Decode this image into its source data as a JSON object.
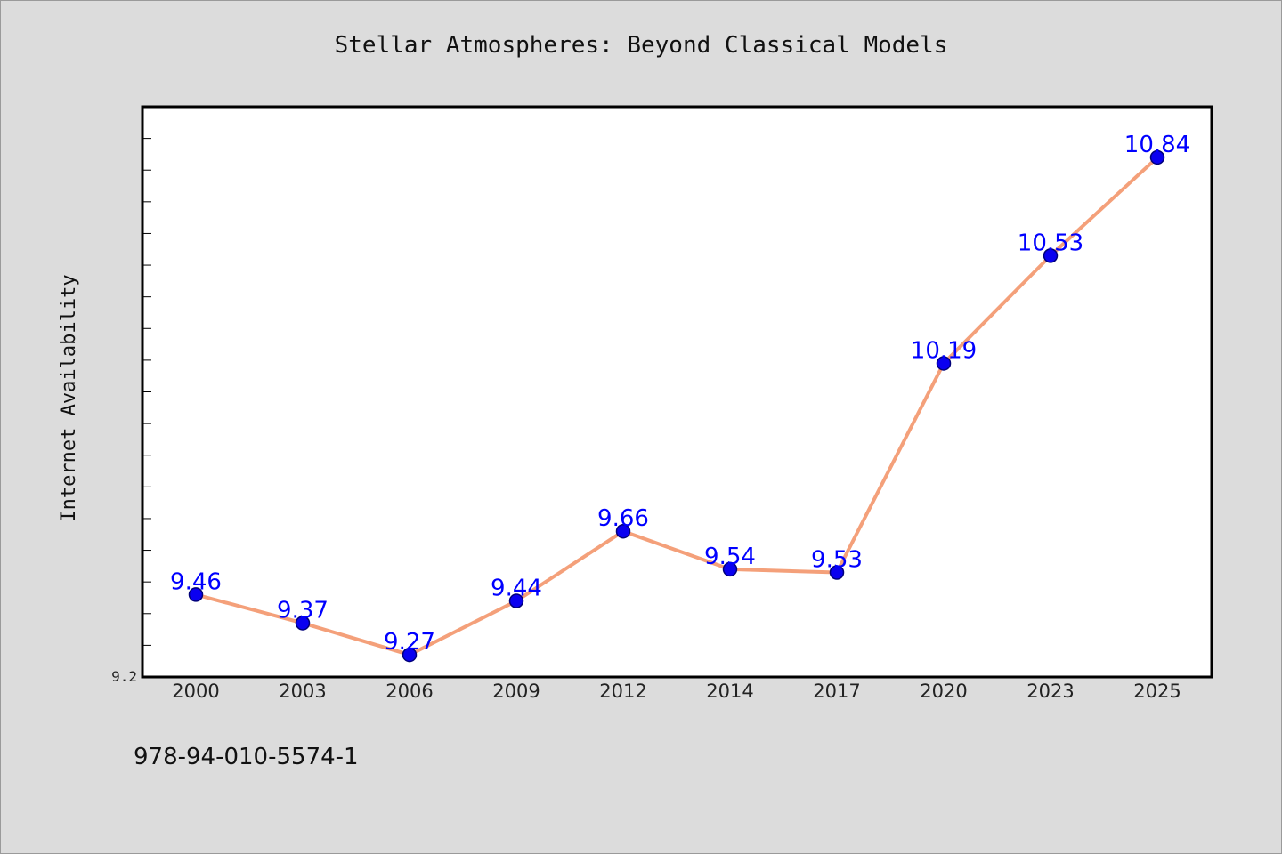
{
  "chart_data": {
    "type": "line",
    "title": "Stellar Atmospheres: Beyond Classical Models",
    "xlabel": "",
    "ylabel": "Internet Availability",
    "categories": [
      "2000",
      "2003",
      "2006",
      "2009",
      "2012",
      "2014",
      "2017",
      "2020",
      "2023",
      "2025"
    ],
    "series": [
      {
        "values": [
          9.46,
          9.37,
          9.27,
          9.44,
          9.66,
          9.54,
          9.53,
          10.19,
          10.53,
          10.84
        ],
        "data_labels": [
          "9.46",
          "9.37",
          "9.27",
          "9.44",
          "9.66",
          "9.54",
          "9.53",
          "10.19",
          "10.53",
          "10.84"
        ]
      }
    ],
    "ylim": [
      9.2,
      11.0
    ],
    "y_tick_labels": [
      "9.2"
    ],
    "grid": false,
    "colors": {
      "line": "#f4a07a",
      "marker_fill": "#0a00f0",
      "marker_edge": "#00007a",
      "data_label": "#0000ff",
      "plot_background": "#ffffff",
      "figure_background": "#dcdcdc"
    }
  },
  "footer": {
    "isbn": "978-94-010-5574-1"
  }
}
